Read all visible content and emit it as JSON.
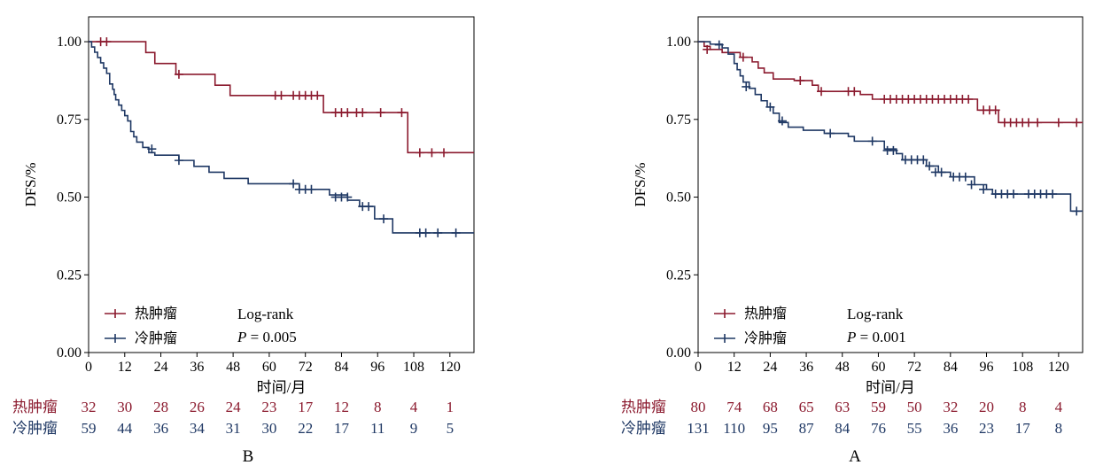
{
  "colors": {
    "hot": "#8b1a2e",
    "cold": "#1f3864",
    "axis": "#000000"
  },
  "chart_data": [
    {
      "type": "line",
      "panel_label": "B",
      "xlabel": "时间/月",
      "ylabel": "DFS/%",
      "xlim": [
        0,
        128
      ],
      "ylim": [
        0,
        1.08
      ],
      "xticks": [
        0,
        12,
        24,
        36,
        48,
        60,
        72,
        84,
        96,
        108,
        120
      ],
      "yticks": [
        0.0,
        0.25,
        0.5,
        0.75,
        1.0
      ],
      "ytick_labels": [
        "0.00",
        "0.25",
        "0.50",
        "0.75",
        "1.00"
      ],
      "legend": {
        "placement": "bottom-left",
        "entries": [
          "热肿瘤",
          "冷肿瘤"
        ]
      },
      "annotation": {
        "test": "Log-rank",
        "p_prefix": "P",
        "p_value": " = 0.005"
      },
      "series": [
        {
          "name": "热肿瘤",
          "color": "#8b1a2e",
          "steps": [
            [
              0,
              1.0
            ],
            [
              19,
              0.965
            ],
            [
              22,
              0.93
            ],
            [
              29,
              0.895
            ],
            [
              42,
              0.86
            ],
            [
              47,
              0.827
            ],
            [
              78,
              0.772
            ],
            [
              106,
              0.643
            ],
            [
              128,
              0.643
            ]
          ],
          "censors": [
            [
              4,
              1.0
            ],
            [
              6,
              1.0
            ],
            [
              30,
              0.895
            ],
            [
              62,
              0.827
            ],
            [
              64,
              0.827
            ],
            [
              68,
              0.827
            ],
            [
              70,
              0.827
            ],
            [
              72,
              0.827
            ],
            [
              74,
              0.827
            ],
            [
              76,
              0.827
            ],
            [
              82,
              0.772
            ],
            [
              84,
              0.772
            ],
            [
              86,
              0.772
            ],
            [
              89,
              0.772
            ],
            [
              91,
              0.772
            ],
            [
              97,
              0.772
            ],
            [
              104,
              0.772
            ],
            [
              110,
              0.643
            ],
            [
              114,
              0.643
            ],
            [
              118,
              0.643
            ]
          ]
        },
        {
          "name": "冷肿瘤",
          "color": "#1f3864",
          "steps": [
            [
              0,
              1.0
            ],
            [
              1,
              0.983
            ],
            [
              2,
              0.966
            ],
            [
              3,
              0.949
            ],
            [
              4,
              0.932
            ],
            [
              5,
              0.915
            ],
            [
              6,
              0.898
            ],
            [
              7,
              0.864
            ],
            [
              8,
              0.847
            ],
            [
              8.5,
              0.83
            ],
            [
              9,
              0.813
            ],
            [
              10,
              0.796
            ],
            [
              11,
              0.779
            ],
            [
              12,
              0.762
            ],
            [
              13,
              0.745
            ],
            [
              14,
              0.711
            ],
            [
              15,
              0.694
            ],
            [
              16,
              0.677
            ],
            [
              18,
              0.66
            ],
            [
              20,
              0.643
            ],
            [
              22,
              0.635
            ],
            [
              30,
              0.618
            ],
            [
              35,
              0.599
            ],
            [
              40,
              0.58
            ],
            [
              45,
              0.56
            ],
            [
              53,
              0.543
            ],
            [
              69,
              0.543
            ],
            [
              70,
              0.525
            ],
            [
              80,
              0.507
            ],
            [
              86,
              0.49
            ],
            [
              90,
              0.47
            ],
            [
              95,
              0.43
            ],
            [
              101,
              0.385
            ],
            [
              128,
              0.385
            ]
          ],
          "censors": [
            [
              21,
              0.655
            ],
            [
              30,
              0.618
            ],
            [
              68,
              0.543
            ],
            [
              70,
              0.525
            ],
            [
              72,
              0.525
            ],
            [
              74,
              0.525
            ],
            [
              82,
              0.5
            ],
            [
              84,
              0.5
            ],
            [
              86,
              0.5
            ],
            [
              91,
              0.47
            ],
            [
              93,
              0.47
            ],
            [
              98,
              0.43
            ],
            [
              110,
              0.385
            ],
            [
              112,
              0.385
            ],
            [
              116,
              0.385
            ],
            [
              122,
              0.385
            ]
          ]
        }
      ],
      "risk_table": {
        "rows": [
          {
            "label": "热肿瘤",
            "color": "#8b1a2e",
            "values": [
              32,
              30,
              28,
              26,
              24,
              23,
              17,
              12,
              8,
              4,
              1
            ]
          },
          {
            "label": "冷肿瘤",
            "color": "#1f3864",
            "values": [
              59,
              44,
              36,
              34,
              31,
              30,
              22,
              17,
              11,
              9,
              5
            ]
          }
        ]
      }
    },
    {
      "type": "line",
      "panel_label": "A",
      "xlabel": "时间/月",
      "ylabel": "DFS/%",
      "xlim": [
        0,
        128
      ],
      "ylim": [
        0,
        1.08
      ],
      "xticks": [
        0,
        12,
        24,
        36,
        48,
        60,
        72,
        84,
        96,
        108,
        120
      ],
      "yticks": [
        0.0,
        0.25,
        0.5,
        0.75,
        1.0
      ],
      "ytick_labels": [
        "0.00",
        "0.25",
        "0.50",
        "0.75",
        "1.00"
      ],
      "legend": {
        "placement": "bottom-left",
        "entries": [
          "热肿瘤",
          "冷肿瘤"
        ]
      },
      "annotation": {
        "test": "Log-rank",
        "p_prefix": "P",
        "p_value": " = 0.001"
      },
      "series": [
        {
          "name": "热肿瘤",
          "color": "#8b1a2e",
          "steps": [
            [
              0,
              1.0
            ],
            [
              2,
              0.985
            ],
            [
              4,
              0.975
            ],
            [
              8,
              0.965
            ],
            [
              14,
              0.95
            ],
            [
              18,
              0.935
            ],
            [
              20,
              0.915
            ],
            [
              22,
              0.9
            ],
            [
              25,
              0.88
            ],
            [
              32,
              0.875
            ],
            [
              38,
              0.86
            ],
            [
              40,
              0.84
            ],
            [
              48,
              0.84
            ],
            [
              54,
              0.83
            ],
            [
              58,
              0.815
            ],
            [
              92,
              0.815
            ],
            [
              93,
              0.78
            ],
            [
              100,
              0.74
            ],
            [
              128,
              0.74
            ]
          ],
          "censors": [
            [
              3,
              0.975
            ],
            [
              15,
              0.95
            ],
            [
              34,
              0.875
            ],
            [
              41,
              0.84
            ],
            [
              50,
              0.84
            ],
            [
              52,
              0.84
            ],
            [
              62,
              0.815
            ],
            [
              64,
              0.815
            ],
            [
              66,
              0.815
            ],
            [
              68,
              0.815
            ],
            [
              70,
              0.815
            ],
            [
              72,
              0.815
            ],
            [
              74,
              0.815
            ],
            [
              76,
              0.815
            ],
            [
              78,
              0.815
            ],
            [
              80,
              0.815
            ],
            [
              82,
              0.815
            ],
            [
              84,
              0.815
            ],
            [
              86,
              0.815
            ],
            [
              88,
              0.815
            ],
            [
              90,
              0.815
            ],
            [
              95,
              0.78
            ],
            [
              97,
              0.78
            ],
            [
              99,
              0.78
            ],
            [
              102,
              0.74
            ],
            [
              104,
              0.74
            ],
            [
              106,
              0.74
            ],
            [
              108,
              0.74
            ],
            [
              110,
              0.74
            ],
            [
              113,
              0.74
            ],
            [
              120,
              0.74
            ],
            [
              126,
              0.74
            ]
          ],
          "note": "step values read from plot"
        },
        {
          "name": "冷肿瘤",
          "color": "#1f3864",
          "steps": [
            [
              0,
              1.0
            ],
            [
              4,
              0.992
            ],
            [
              8,
              0.98
            ],
            [
              10,
              0.96
            ],
            [
              12,
              0.93
            ],
            [
              13,
              0.91
            ],
            [
              14,
              0.89
            ],
            [
              15,
              0.87
            ],
            [
              17,
              0.85
            ],
            [
              19,
              0.83
            ],
            [
              21,
              0.81
            ],
            [
              23,
              0.79
            ],
            [
              25,
              0.77
            ],
            [
              27,
              0.74
            ],
            [
              30,
              0.725
            ],
            [
              35,
              0.715
            ],
            [
              42,
              0.705
            ],
            [
              50,
              0.695
            ],
            [
              52,
              0.68
            ],
            [
              60,
              0.68
            ],
            [
              62,
              0.655
            ],
            [
              66,
              0.64
            ],
            [
              68,
              0.62
            ],
            [
              76,
              0.6
            ],
            [
              80,
              0.58
            ],
            [
              84,
              0.565
            ],
            [
              88,
              0.565
            ],
            [
              92,
              0.54
            ],
            [
              96,
              0.525
            ],
            [
              98,
              0.51
            ],
            [
              108,
              0.51
            ],
            [
              120,
              0.51
            ],
            [
              124,
              0.455
            ],
            [
              128,
              0.455
            ]
          ],
          "censors": [
            [
              7,
              0.99
            ],
            [
              16,
              0.855
            ],
            [
              24,
              0.79
            ],
            [
              28,
              0.745
            ],
            [
              44,
              0.705
            ],
            [
              58,
              0.68
            ],
            [
              63,
              0.65
            ],
            [
              65,
              0.65
            ],
            [
              69,
              0.62
            ],
            [
              71,
              0.62
            ],
            [
              73,
              0.62
            ],
            [
              75,
              0.62
            ],
            [
              77,
              0.6
            ],
            [
              79,
              0.58
            ],
            [
              81,
              0.58
            ],
            [
              85,
              0.565
            ],
            [
              87,
              0.565
            ],
            [
              89,
              0.565
            ],
            [
              91,
              0.54
            ],
            [
              95,
              0.525
            ],
            [
              99,
              0.51
            ],
            [
              101,
              0.51
            ],
            [
              103,
              0.51
            ],
            [
              105,
              0.51
            ],
            [
              110,
              0.51
            ],
            [
              112,
              0.51
            ],
            [
              114,
              0.51
            ],
            [
              116,
              0.51
            ],
            [
              118,
              0.51
            ],
            [
              126,
              0.455
            ]
          ]
        }
      ],
      "risk_table": {
        "rows": [
          {
            "label": "热肿瘤",
            "color": "#8b1a2e",
            "values": [
              80,
              74,
              68,
              65,
              63,
              59,
              50,
              32,
              20,
              8,
              4
            ]
          },
          {
            "label": "冷肿瘤",
            "color": "#1f3864",
            "values": [
              131,
              110,
              95,
              87,
              84,
              76,
              55,
              36,
              23,
              17,
              8
            ]
          }
        ]
      }
    }
  ]
}
